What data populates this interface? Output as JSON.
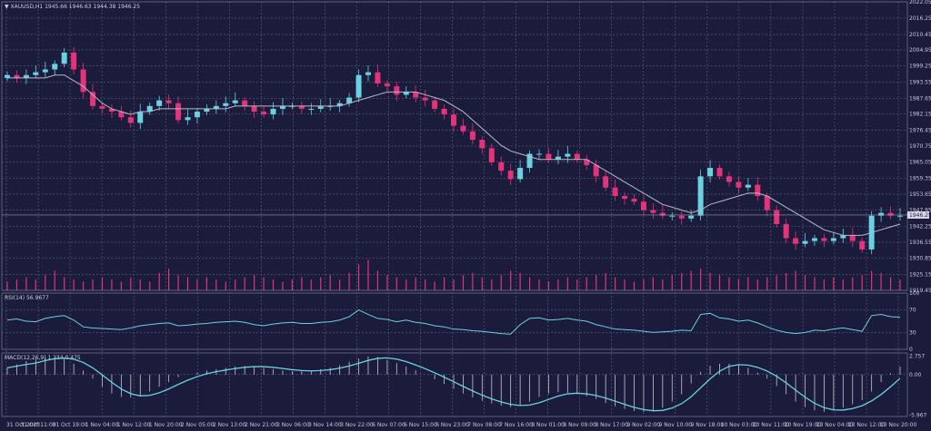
{
  "colors": {
    "background": "#1b1b3b",
    "grid": "#6e6e8e",
    "bull_candle": "#6ad1e3",
    "bear_candle": "#e5337a",
    "ma_line": "#b8b8c8",
    "volume": "#e5337a",
    "rsi_line": "#6ad1e3",
    "macd_line": "#6ad1e3",
    "macd_hist": "#c8c8c8",
    "axis_text": "#c8c8d8"
  },
  "header": {
    "main": "▼ XAUUSD,H1  1945.66 1946.63 1944.38 1946.25",
    "rsi": "RSI(14) 56.9677",
    "macd": "MACD(12,26,9) 1.234 0.475"
  },
  "current_price_label": "1946.25",
  "chart_data": {
    "type": "candlestick",
    "symbol": "XAUUSD",
    "timeframe": "H1",
    "price_ticks": [
      "2022.05",
      "2016.25",
      "2010.45",
      "2004.95",
      "1999.25",
      "1993.55",
      "1987.65",
      "1982.15",
      "1976.45",
      "1970.75",
      "1965.05",
      "1959.35",
      "1953.65",
      "1947.95",
      "1942.25",
      "1936.55",
      "1930.85",
      "1925.15",
      "1919.45"
    ],
    "price_range": [
      1919.45,
      2022.05
    ],
    "rsi_ticks": [
      "100",
      "70",
      "30",
      "0"
    ],
    "rsi_value": 56.9677,
    "macd_ticks": [
      "2.757",
      "0.00",
      "-5.967"
    ],
    "macd_values": {
      "macd": 1.234,
      "signal": 0.475
    },
    "x_labels": [
      "31 Oct 2023",
      "31 Oct 11:00",
      "31 Oct 19:00",
      "1 Nov 04:00",
      "1 Nov 12:00",
      "1 Nov 20:00",
      "2 Nov 05:00",
      "2 Nov 13:00",
      "2 Nov 21:00",
      "3 Nov 06:00",
      "3 Nov 14:00",
      "3 Nov 22:00",
      "6 Nov 07:00",
      "6 Nov 15:00",
      "6 Nov 23:00",
      "7 Nov 08:00",
      "7 Nov 16:00",
      "8 Nov 01:00",
      "8 Nov 09:00",
      "8 Nov 17:00",
      "9 Nov 02:00",
      "9 Nov 10:00",
      "9 Nov 18:00",
      "10 Nov 03:00",
      "10 Nov 11:00",
      "10 Nov 19:00",
      "13 Nov 04:00",
      "13 Nov 12:00",
      "13 Nov 20:00"
    ],
    "close_path": [
      1996,
      1995,
      1996,
      1997,
      1998,
      2000,
      2004,
      1998,
      1990,
      1985,
      1984,
      1983,
      1981,
      1979,
      1983,
      1985,
      1987,
      1986,
      1980,
      1981,
      1983,
      1984,
      1985,
      1986,
      1987,
      1985,
      1983,
      1982,
      1984,
      1985,
      1985,
      1984,
      1984,
      1985,
      1985,
      1986,
      1988,
      1996,
      1997,
      1993,
      1992,
      1989,
      1990,
      1988,
      1987,
      1984,
      1982,
      1978,
      1976,
      1973,
      1970,
      1965,
      1962,
      1959,
      1963,
      1968,
      1968,
      1966,
      1967,
      1968,
      1966,
      1964,
      1960,
      1956,
      1953,
      1952,
      1951,
      1948,
      1947,
      1946,
      1946,
      1945,
      1946,
      1960,
      1963,
      1960,
      1958,
      1956,
      1957,
      1953,
      1948,
      1943,
      1938,
      1936,
      1937,
      1938,
      1937,
      1938,
      1939,
      1937,
      1934,
      1946,
      1947,
      1946,
      1946
    ],
    "ma_path": [
      1995,
      1995,
      1995,
      1995,
      1995,
      1996,
      1996,
      1994,
      1992,
      1989,
      1986,
      1984,
      1983,
      1982,
      1983,
      1983,
      1984,
      1984,
      1984,
      1984,
      1984,
      1984,
      1984,
      1984,
      1985,
      1985,
      1985,
      1985,
      1985,
      1985,
      1985,
      1985,
      1985,
      1985,
      1985,
      1985,
      1986,
      1987,
      1988,
      1989,
      1990,
      1990,
      1990,
      1990,
      1989,
      1988,
      1987,
      1985,
      1983,
      1980,
      1977,
      1974,
      1971,
      1969,
      1968,
      1967,
      1966,
      1966,
      1966,
      1966,
      1966,
      1966,
      1964,
      1962,
      1960,
      1958,
      1956,
      1954,
      1952,
      1950,
      1949,
      1948,
      1947,
      1948,
      1950,
      1951,
      1952,
      1953,
      1954,
      1954,
      1953,
      1951,
      1949,
      1947,
      1945,
      1943,
      1941,
      1940,
      1939,
      1939,
      1939,
      1940,
      1941,
      1942,
      1943
    ],
    "volume_profile": [
      4,
      5,
      6,
      5,
      7,
      9,
      6,
      5,
      4,
      5,
      6,
      5,
      4,
      6,
      5,
      4,
      8,
      10,
      7,
      6,
      5,
      6,
      5,
      4,
      5,
      6,
      7,
      6,
      5,
      4,
      5,
      6,
      5,
      6,
      7,
      5,
      8,
      12,
      14,
      9,
      7,
      6,
      5,
      6,
      5,
      4,
      6,
      5,
      7,
      8,
      6,
      5,
      7,
      9,
      8,
      6,
      5,
      4,
      5,
      6,
      5,
      6,
      7,
      8,
      6,
      5,
      4,
      5,
      6,
      5,
      7,
      8,
      9,
      10,
      8,
      7,
      6,
      5,
      6,
      5,
      6,
      7,
      8,
      9,
      7,
      6,
      5,
      6,
      5,
      6,
      7,
      9,
      8,
      6,
      5
    ],
    "rsi_path": [
      52,
      54,
      50,
      49,
      55,
      58,
      60,
      52,
      40,
      38,
      37,
      36,
      35,
      38,
      42,
      44,
      46,
      47,
      42,
      43,
      45,
      46,
      48,
      49,
      50,
      48,
      44,
      42,
      45,
      47,
      48,
      46,
      46,
      48,
      49,
      52,
      58,
      70,
      62,
      55,
      53,
      49,
      52,
      48,
      46,
      42,
      40,
      36,
      35,
      33,
      32,
      30,
      28,
      27,
      44,
      55,
      56,
      52,
      53,
      55,
      52,
      50,
      44,
      40,
      36,
      35,
      34,
      32,
      30,
      31,
      32,
      34,
      33,
      62,
      64,
      56,
      54,
      50,
      52,
      47,
      40,
      34,
      30,
      28,
      30,
      34,
      33,
      36,
      38,
      35,
      32,
      60,
      62,
      58,
      57
    ],
    "macd_path": [
      1,
      1.5,
      2,
      2.3,
      2.5,
      2.6,
      2.4,
      1.6,
      0.6,
      -0.6,
      -1.8,
      -2.8,
      -3.3,
      -3.4,
      -3.1,
      -2.5,
      -1.8,
      -1.1,
      -0.4,
      0.0,
      0.3,
      0.6,
      0.8,
      1,
      1.2,
      1.3,
      1.2,
      1.0,
      0.8,
      0.6,
      0.5,
      0.5,
      0.6,
      0.8,
      1.0,
      1.4,
      1.9,
      2.4,
      2.7,
      2.6,
      2.2,
      1.7,
      1.2,
      0.6,
      0.0,
      -0.7,
      -1.4,
      -2.1,
      -2.8,
      -3.4,
      -3.9,
      -4.3,
      -4.6,
      -4.8,
      -4.6,
      -4.0,
      -3.3,
      -2.8,
      -2.6,
      -2.7,
      -2.9,
      -3.2,
      -3.6,
      -4.2,
      -4.7,
      -5.1,
      -5.4,
      -5.5,
      -5.4,
      -4.9,
      -4.0,
      -2.9,
      -1.3,
      0.4,
      1.3,
      1.6,
      1.6,
      1.4,
      1.0,
      0.3,
      -0.6,
      -1.7,
      -2.9,
      -4.0,
      -4.8,
      -5.3,
      -5.5,
      -5.3,
      -4.9,
      -4.4,
      -3.8,
      -2.5,
      -1.1,
      0.2,
      1.2
    ]
  }
}
